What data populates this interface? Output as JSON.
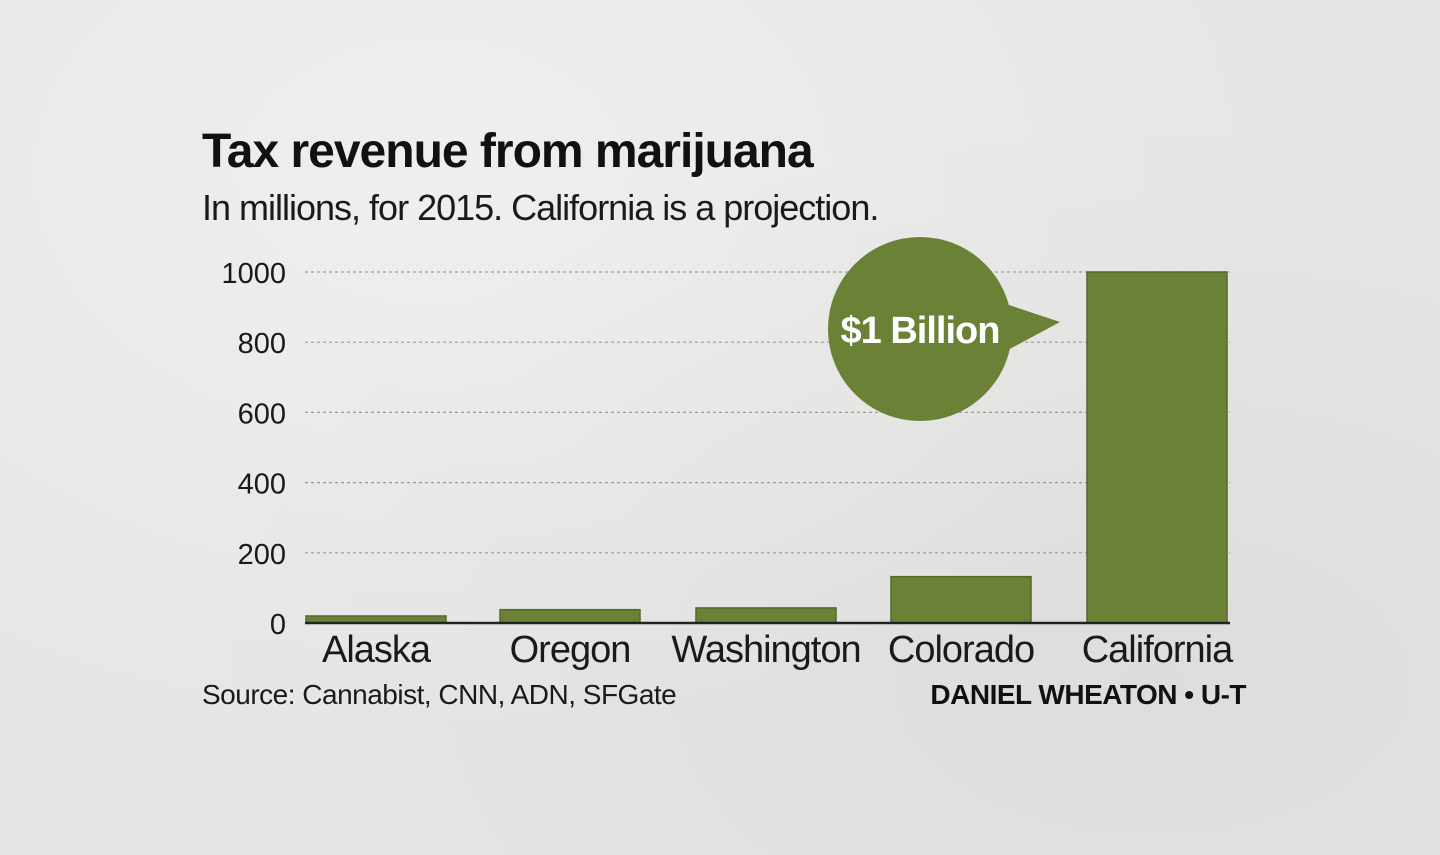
{
  "colors": {
    "bar": "#6a8136",
    "bar_stroke": "#55692a",
    "callout": "#6a8136",
    "grid": "#9a9a98",
    "axis": "#222222"
  },
  "header": {
    "title": "Tax revenue from marijuana",
    "subtitle": "In millions, for 2015. California is a projection."
  },
  "footer": {
    "source": "Source: Cannabist, CNN, ADN, SFGate",
    "credit": "DANIEL WHEATON • U-T"
  },
  "callout": {
    "label": "$1 Billion",
    "category": "California"
  },
  "chart_data": {
    "type": "bar",
    "title": "Tax revenue from marijuana",
    "subtitle": "In millions, for 2015. California is a projection.",
    "xlabel": "",
    "ylabel": "",
    "categories": [
      "Alaska",
      "Oregon",
      "Washington",
      "Colorado",
      "California"
    ],
    "values": [
      20,
      38,
      43,
      132,
      1000
    ],
    "ylim": [
      0,
      1000
    ],
    "yticks": [
      0,
      200,
      400,
      600,
      800,
      1000
    ],
    "grid": true,
    "grid_style": "dotted horizontal"
  }
}
